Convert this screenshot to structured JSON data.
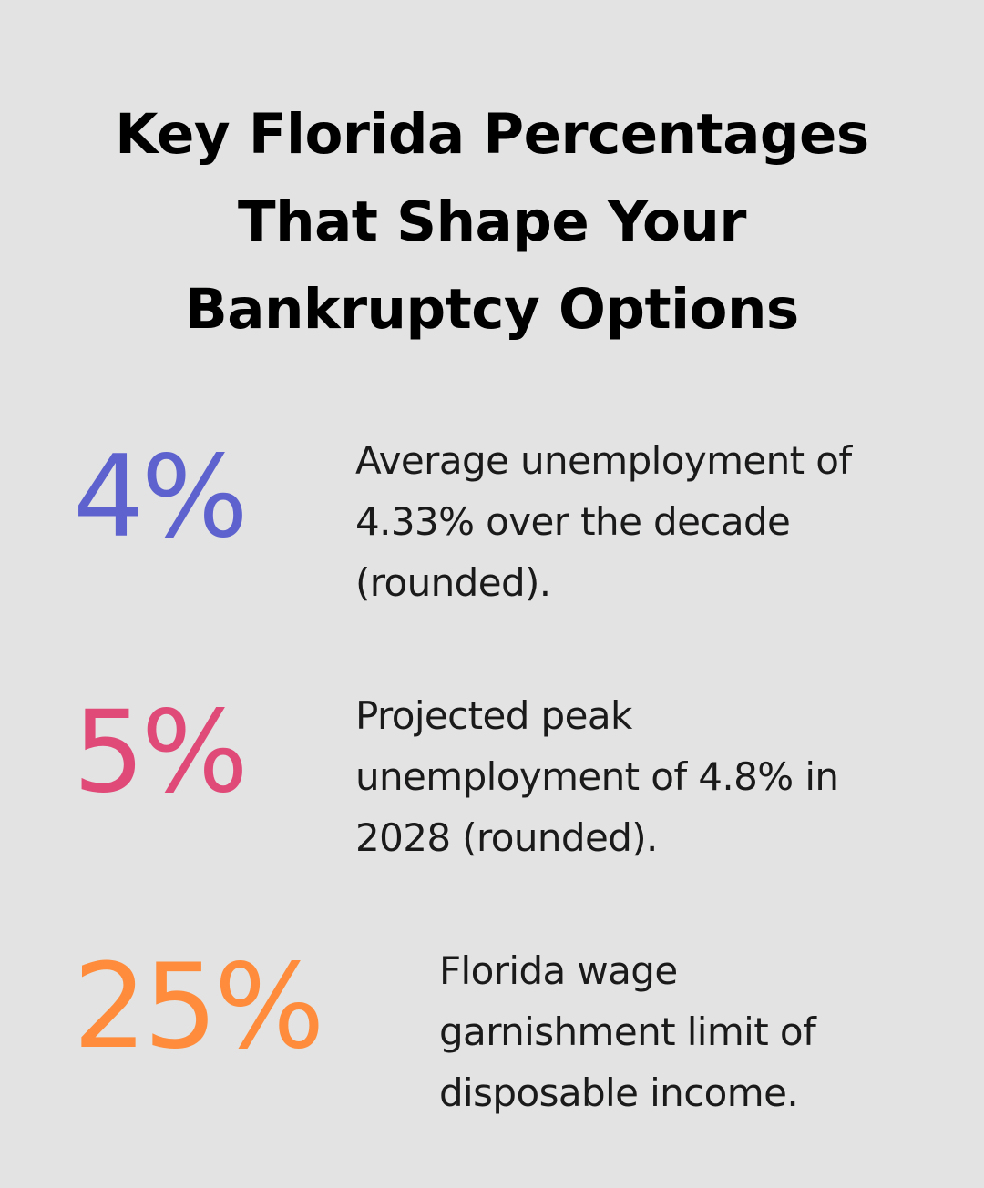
{
  "title": "Key Florida Percentages That Shape Your Bankruptcy Options",
  "stats": [
    {
      "value": "4%",
      "color": "#5e62cf",
      "description": "Average unemployment of 4.33% over the decade (rounded)."
    },
    {
      "value": "5%",
      "color": "#e04a79",
      "description": "Projected peak unemployment of 4.8% in 2028 (rounded)."
    },
    {
      "value": "25%",
      "color": "#ff8c3c",
      "description": "Florida wage garnishment limit of disposable income."
    }
  ]
}
